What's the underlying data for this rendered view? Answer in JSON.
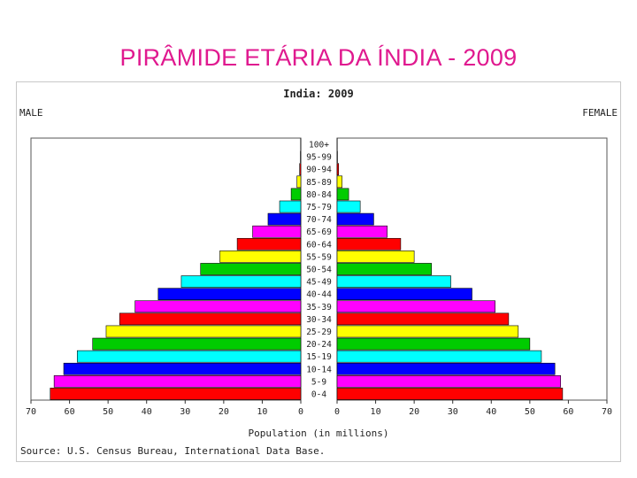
{
  "slide": {
    "title": "PIRÂMIDE ETÁRIA DA ÍNDIA - 2009"
  },
  "colors": {
    "title": "#e0198f",
    "bar_sequence": [
      "#ff0000",
      "#ff00ff",
      "#0000ff",
      "#00ffff",
      "#00cc00",
      "#ffff00"
    ]
  },
  "chart_data": {
    "type": "bar",
    "orientation": "population-pyramid",
    "title": "India: 2009",
    "left_label": "MALE",
    "right_label": "FEMALE",
    "xlabel": "Population (in millions)",
    "source": "Source: U.S. Census Bureau, International Data Base.",
    "xlim": [
      0,
      70
    ],
    "x_ticks": [
      "70",
      "60",
      "50",
      "40",
      "30",
      "20",
      "10",
      "0"
    ],
    "categories": [
      "0-4",
      "5-9",
      "10-14",
      "15-19",
      "20-24",
      "25-29",
      "30-34",
      "35-39",
      "40-44",
      "45-49",
      "50-54",
      "55-59",
      "60-64",
      "65-69",
      "70-74",
      "75-79",
      "80-84",
      "85-89",
      "90-94",
      "95-99",
      "100+"
    ],
    "series": [
      {
        "name": "MALE",
        "values": [
          65,
          64,
          61.5,
          58,
          54,
          50.5,
          47,
          43,
          37,
          31,
          26,
          21,
          16.5,
          12.5,
          8.5,
          5.5,
          2.5,
          1,
          0.3,
          0.1,
          0.05
        ]
      },
      {
        "name": "FEMALE",
        "values": [
          58.5,
          58,
          56.5,
          53,
          50,
          47,
          44.5,
          41,
          35,
          29.5,
          24.5,
          20,
          16.5,
          13,
          9.5,
          6,
          3,
          1.3,
          0.4,
          0.1,
          0.05
        ]
      }
    ]
  }
}
